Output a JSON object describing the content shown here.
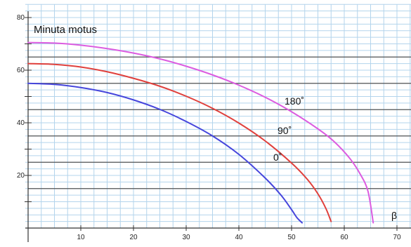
{
  "chart_data": {
    "type": "line",
    "title": "Minuta motus",
    "xlabel": "β",
    "ylabel": "",
    "xlim": [
      0,
      72
    ],
    "ylim": [
      0,
      82
    ],
    "x_ticks": [
      10,
      20,
      30,
      40,
      50,
      60,
      70
    ],
    "y_ticks": [
      20,
      40,
      60,
      80
    ],
    "y_minor_ticks": [
      10,
      30,
      50,
      70
    ],
    "horizontal_lines": [
      15,
      25,
      35,
      45,
      55,
      65
    ],
    "grid": true,
    "series": [
      {
        "name": "0˚",
        "color": "#4646dc",
        "x": [
          0,
          5,
          10,
          15,
          20,
          25,
          30,
          35,
          40,
          45,
          48,
          50,
          51,
          52
        ],
        "y": [
          55,
          54.6,
          53.4,
          51.5,
          48.7,
          45.1,
          40.5,
          35,
          28,
          19,
          12.5,
          7,
          4,
          2
        ]
      },
      {
        "name": "90˚",
        "color": "#e0403c",
        "x": [
          0,
          5,
          10,
          15,
          20,
          25,
          30,
          35,
          40,
          45,
          50,
          53,
          55,
          56.5,
          57.5
        ],
        "y": [
          62.5,
          62.2,
          61.2,
          59.4,
          56.9,
          53.9,
          50.1,
          45.5,
          39.9,
          33.1,
          24.7,
          18.5,
          13,
          7.5,
          2.5
        ]
      },
      {
        "name": "180˚",
        "color": "#dc5ce0",
        "x": [
          0,
          5,
          10,
          15,
          20,
          25,
          30,
          35,
          40,
          45,
          50,
          55,
          58,
          61,
          63,
          64.5,
          65.5
        ],
        "y": [
          70.5,
          70.3,
          69.5,
          68.2,
          66.5,
          64.3,
          61.5,
          58.2,
          54.3,
          49.7,
          44.2,
          37.7,
          33,
          26.6,
          20.6,
          14,
          2
        ]
      }
    ],
    "annotations": [
      "180˚",
      "90˚",
      "0˚"
    ],
    "colors": {
      "background": "#ffffff",
      "minor_grid": "#b3d4ec",
      "major_line": "#555555",
      "axis": "#333333"
    }
  }
}
